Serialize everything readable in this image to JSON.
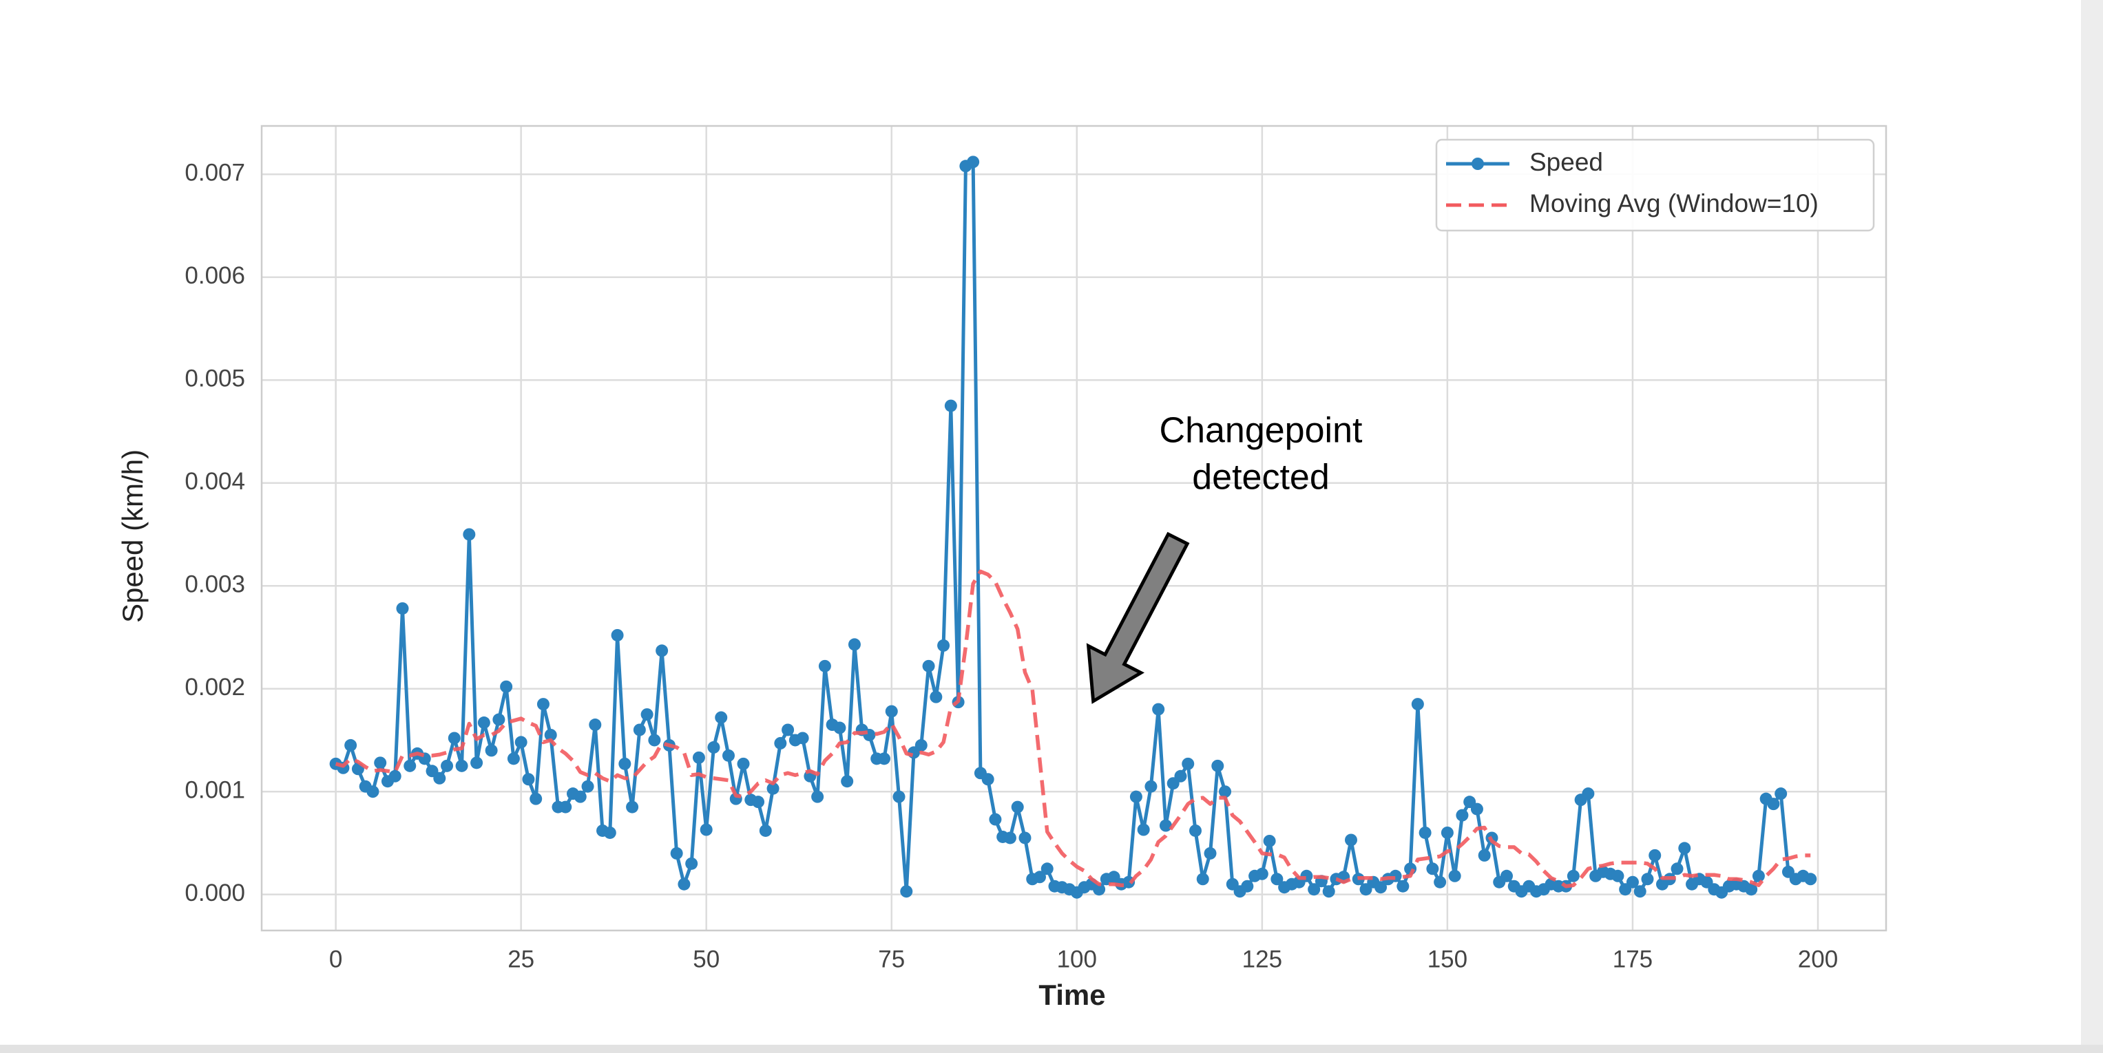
{
  "chart_data": {
    "type": "line",
    "xlabel": "Time",
    "ylabel": "Speed (km/h)",
    "annotation_lines": [
      "Changepoint",
      "detected"
    ],
    "legend": "upper right",
    "grid": true,
    "xlim": [
      -10,
      209.2
    ],
    "ylim": [
      -0.00035,
      0.00747
    ],
    "xticks": [
      0,
      25,
      50,
      75,
      100,
      125,
      150,
      175,
      200
    ],
    "yticks": [
      {
        "value": 0,
        "label": "0.000"
      },
      {
        "value": 0.001,
        "label": "0.001"
      },
      {
        "value": 0.002,
        "label": "0.002"
      },
      {
        "value": 0.003,
        "label": "0.003"
      },
      {
        "value": 0.004,
        "label": "0.004"
      },
      {
        "value": 0.005,
        "label": "0.005"
      },
      {
        "value": 0.006,
        "label": "0.006"
      },
      {
        "value": 0.007,
        "label": "0.007"
      }
    ],
    "x": [
      0,
      1,
      2,
      3,
      4,
      5,
      6,
      7,
      8,
      9,
      10,
      11,
      12,
      13,
      14,
      15,
      16,
      17,
      18,
      19,
      20,
      21,
      22,
      23,
      24,
      25,
      26,
      27,
      28,
      29,
      30,
      31,
      32,
      33,
      34,
      35,
      36,
      37,
      38,
      39,
      40,
      41,
      42,
      43,
      44,
      45,
      46,
      47,
      48,
      49,
      50,
      51,
      52,
      53,
      54,
      55,
      56,
      57,
      58,
      59,
      60,
      61,
      62,
      63,
      64,
      65,
      66,
      67,
      68,
      69,
      70,
      71,
      72,
      73,
      74,
      75,
      76,
      77,
      78,
      79,
      80,
      81,
      82,
      83,
      84,
      85,
      86,
      87,
      88,
      89,
      90,
      91,
      92,
      93,
      94,
      95,
      96,
      97,
      98,
      99,
      100,
      101,
      102,
      103,
      104,
      105,
      106,
      107,
      108,
      109,
      110,
      111,
      112,
      113,
      114,
      115,
      116,
      117,
      118,
      119,
      120,
      121,
      122,
      123,
      124,
      125,
      126,
      127,
      128,
      129,
      130,
      131,
      132,
      133,
      134,
      135,
      136,
      137,
      138,
      139,
      140,
      141,
      142,
      143,
      144,
      145,
      146,
      147,
      148,
      149,
      150,
      151,
      152,
      153,
      154,
      155,
      156,
      157,
      158,
      159,
      160,
      161,
      162,
      163,
      164,
      165,
      166,
      167,
      168,
      169,
      170,
      171,
      172,
      173,
      174,
      175,
      176,
      177,
      178,
      179,
      180,
      181,
      182,
      183,
      184,
      185,
      186,
      187,
      188,
      189,
      190,
      191,
      192,
      193,
      194,
      195,
      196,
      197,
      198,
      199
    ],
    "series": [
      {
        "name": "Speed",
        "color": "#2b82bf",
        "marker": "o",
        "linestyle": "solid",
        "values": [
          0.00127,
          0.00123,
          0.00145,
          0.00122,
          0.00105,
          0.001,
          0.00128,
          0.0011,
          0.00115,
          0.00278,
          0.00125,
          0.00137,
          0.00132,
          0.0012,
          0.00113,
          0.00125,
          0.00152,
          0.00125,
          0.0035,
          0.00128,
          0.00167,
          0.0014,
          0.0017,
          0.00202,
          0.00132,
          0.00148,
          0.00112,
          0.00093,
          0.00185,
          0.00155,
          0.00085,
          0.00085,
          0.00098,
          0.00095,
          0.00105,
          0.00165,
          0.00062,
          0.0006,
          0.00252,
          0.00127,
          0.00085,
          0.0016,
          0.00175,
          0.0015,
          0.00237,
          0.00145,
          0.0004,
          0.0001,
          0.0003,
          0.00133,
          0.00063,
          0.00143,
          0.00172,
          0.00135,
          0.00093,
          0.00127,
          0.00092,
          0.0009,
          0.00062,
          0.00103,
          0.00147,
          0.0016,
          0.0015,
          0.00152,
          0.00115,
          0.00095,
          0.00222,
          0.00165,
          0.00162,
          0.0011,
          0.00243,
          0.0016,
          0.00155,
          0.00132,
          0.00132,
          0.00178,
          0.00095,
          3e-05,
          0.00138,
          0.00145,
          0.00222,
          0.00192,
          0.00242,
          0.00475,
          0.00187,
          0.00708,
          0.00712,
          0.00118,
          0.00112,
          0.00073,
          0.00056,
          0.00055,
          0.00085,
          0.00055,
          0.00015,
          0.00017,
          0.00025,
          8e-05,
          7e-05,
          5e-05,
          2e-05,
          7e-05,
          0.0001,
          5e-05,
          0.00015,
          0.00017,
          0.0001,
          0.00012,
          0.00095,
          0.00063,
          0.00105,
          0.0018,
          0.00067,
          0.00108,
          0.00115,
          0.00127,
          0.00062,
          0.00015,
          0.0004,
          0.00125,
          0.001,
          0.0001,
          3e-05,
          8e-05,
          0.00018,
          0.0002,
          0.00052,
          0.00015,
          7e-05,
          0.0001,
          0.00012,
          0.00018,
          5e-05,
          0.00013,
          3e-05,
          0.00015,
          0.00017,
          0.00053,
          0.00015,
          5e-05,
          0.00012,
          7e-05,
          0.00015,
          0.00018,
          8e-05,
          0.00025,
          0.00185,
          0.0006,
          0.00025,
          0.00012,
          0.0006,
          0.00018,
          0.00077,
          0.0009,
          0.00083,
          0.00038,
          0.00055,
          0.00012,
          0.00018,
          8e-05,
          3e-05,
          8e-05,
          3e-05,
          5e-05,
          0.0001,
          8e-05,
          8e-05,
          0.00018,
          0.00092,
          0.00098,
          0.00018,
          0.00022,
          0.0002,
          0.00018,
          5e-05,
          0.00012,
          3e-05,
          0.00015,
          0.00038,
          0.0001,
          0.00015,
          0.00025,
          0.00045,
          0.0001,
          0.00015,
          0.00012,
          5e-05,
          2e-05,
          8e-05,
          0.0001,
          8e-05,
          5e-05,
          0.00018,
          0.00093,
          0.00088,
          0.00098,
          0.00022,
          0.00015,
          0.00018,
          0.00015
        ]
      },
      {
        "name": "Moving Avg (Window=10)",
        "color": "#f25a5e",
        "marker": null,
        "linestyle": "dashed",
        "values": [
          0.00127,
          0.00125,
          0.00132,
          0.00129,
          0.00124,
          0.0012,
          0.00121,
          0.0012,
          0.00119,
          0.00135,
          0.00135,
          0.00137,
          0.00135,
          0.00135,
          0.00136,
          0.00138,
          0.00141,
          0.00142,
          0.00166,
          0.00151,
          0.00155,
          0.00155,
          0.00159,
          0.00167,
          0.00169,
          0.00171,
          0.00167,
          0.00164,
          0.00148,
          0.0015,
          0.00142,
          0.00137,
          0.0013,
          0.00119,
          0.00116,
          0.00118,
          0.00113,
          0.0011,
          0.00116,
          0.00113,
          0.00113,
          0.00121,
          0.00129,
          0.00134,
          0.00147,
          0.00145,
          0.00143,
          0.00138,
          0.00116,
          0.00117,
          0.00114,
          0.00113,
          0.00112,
          0.00111,
          0.00096,
          0.00095,
          0.001,
          0.00108,
          0.00111,
          0.00108,
          0.00116,
          0.00118,
          0.00116,
          0.00118,
          0.0012,
          0.00117,
          0.0013,
          0.00137,
          0.00147,
          0.00148,
          0.00157,
          0.00157,
          0.00158,
          0.00156,
          0.00158,
          0.00166,
          0.00153,
          0.00137,
          0.00135,
          0.00138,
          0.00136,
          0.00139,
          0.00148,
          0.00182,
          0.00188,
          0.00241,
          0.00302,
          0.00314,
          0.00311,
          0.00304,
          0.00288,
          0.00274,
          0.00258,
          0.00216,
          0.00199,
          0.0013,
          0.00061,
          0.0005,
          0.0004,
          0.00033,
          0.00027,
          0.00023,
          0.00015,
          0.0001,
          0.0001,
          0.0001,
          9e-05,
          9e-05,
          0.00018,
          0.00024,
          0.00034,
          0.00051,
          0.00057,
          0.00067,
          0.00077,
          0.00088,
          0.00093,
          0.00094,
          0.00088,
          0.00094,
          0.00094,
          0.00077,
          0.00071,
          0.00061,
          0.00051,
          0.0004,
          0.00039,
          0.00039,
          0.00036,
          0.00024,
          0.00016,
          0.00016,
          0.00017,
          0.00017,
          0.00016,
          0.00015,
          0.00012,
          0.00015,
          0.00016,
          0.00016,
          0.00016,
          0.00015,
          0.00016,
          0.00016,
          0.00017,
          0.00018,
          0.00034,
          0.00035,
          0.00036,
          0.00037,
          0.00042,
          0.00043,
          0.00049,
          0.00056,
          0.00064,
          0.00065,
          0.00052,
          0.00047,
          0.00046,
          0.00046,
          0.0004,
          0.00039,
          0.00032,
          0.00023,
          0.00016,
          0.00013,
          8e-05,
          9e-05,
          0.00016,
          0.00025,
          0.00027,
          0.00028,
          0.0003,
          0.00031,
          0.00031,
          0.00031,
          0.00031,
          0.0003,
          0.00025,
          0.00016,
          0.00016,
          0.00016,
          0.00019,
          0.00018,
          0.00019,
          0.00019,
          0.00019,
          0.00018,
          0.00015,
          0.00015,
          0.00014,
          0.00012,
          9e-05,
          0.00018,
          0.00025,
          0.00034,
          0.00035,
          0.00037,
          0.00038,
          0.00038
        ]
      }
    ]
  }
}
